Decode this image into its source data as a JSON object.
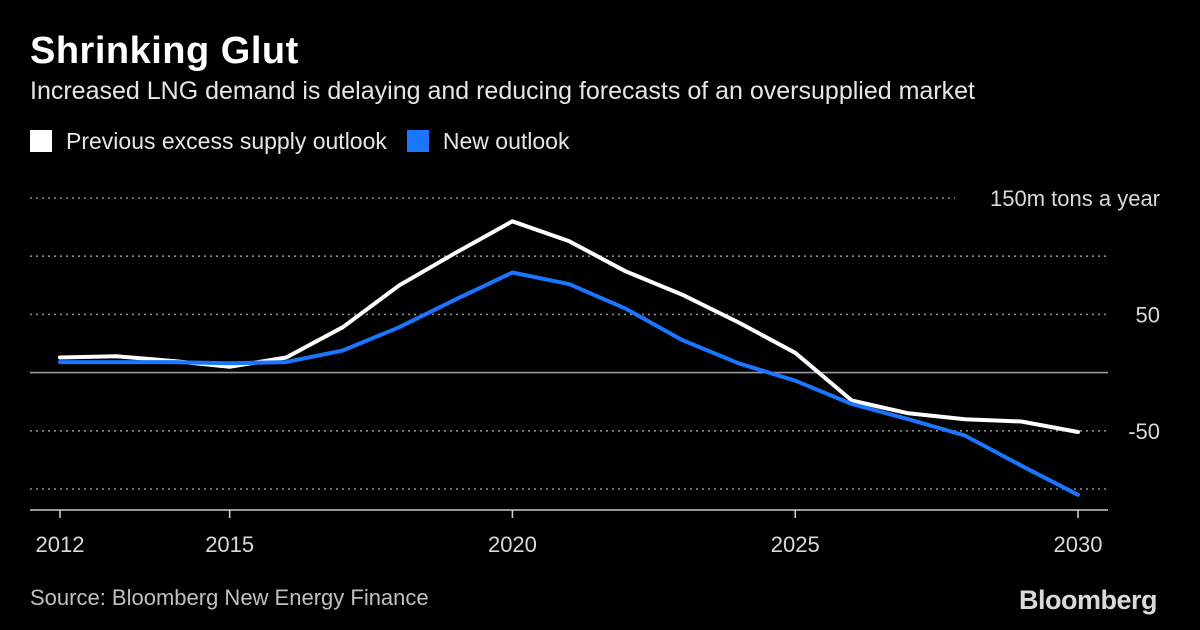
{
  "header": {
    "title": "Shrinking Glut",
    "subtitle": "Increased LNG demand is delaying and reducing forecasts of an oversupplied market"
  },
  "legend": {
    "items": [
      {
        "label": "Previous excess supply outlook",
        "color": "#ffffff"
      },
      {
        "label": "New outlook",
        "color": "#1a75ff"
      }
    ]
  },
  "footer": {
    "source": "Source: Bloomberg New Energy Finance",
    "brand": "Bloomberg"
  },
  "chart_data": {
    "type": "line",
    "x": [
      2012,
      2013,
      2014,
      2015,
      2016,
      2017,
      2018,
      2019,
      2020,
      2021,
      2022,
      2023,
      2024,
      2025,
      2026,
      2027,
      2028,
      2029,
      2030
    ],
    "series": [
      {
        "name": "Previous excess supply outlook",
        "color": "#ffffff",
        "values": [
          13,
          14,
          10,
          5,
          13,
          39,
          75,
          103,
          130,
          113,
          87,
          67,
          43,
          17,
          -24,
          -35,
          -40,
          -42,
          -51
        ]
      },
      {
        "name": "New outlook",
        "color": "#1a75ff",
        "values": [
          9,
          9,
          9,
          8,
          9,
          19,
          39,
          63,
          86,
          76,
          55,
          28,
          8,
          -7,
          -27,
          -40,
          -54,
          -80,
          -105
        ]
      }
    ],
    "ylim": [
      -110,
      150
    ],
    "xlim": [
      2012,
      2030
    ],
    "y_gridlines": [
      -100,
      -50,
      0,
      50,
      100,
      150
    ],
    "y_tick_labels": [
      {
        "value": 150,
        "label": "150m tons a year"
      },
      {
        "value": 50,
        "label": "50"
      },
      {
        "value": -50,
        "label": "-50"
      }
    ],
    "x_ticks": [
      {
        "value": 2012,
        "label": "2012"
      },
      {
        "value": 2015,
        "label": "2015"
      },
      {
        "value": 2020,
        "label": "2020"
      },
      {
        "value": 2025,
        "label": "2025"
      },
      {
        "value": 2030,
        "label": "2030"
      }
    ],
    "grid": true,
    "zero_line": true,
    "axis_color": "#cccccc",
    "grid_color": "#8c8c8c"
  }
}
